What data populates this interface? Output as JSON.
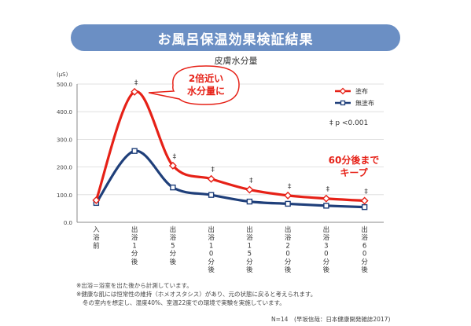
{
  "banner": {
    "title": "お風呂保温効果検証結果"
  },
  "chart_data": {
    "type": "line",
    "title": "皮膚水分量",
    "ylabel": "(μS)",
    "ylim": [
      0,
      500
    ],
    "yticks": [
      "0.0",
      "100.0",
      "200.0",
      "300.0",
      "400.0",
      "500.0"
    ],
    "categories": [
      "入浴前",
      "出浴1分後",
      "出浴5分後",
      "出浴10分後",
      "出浴15分後",
      "出浴20分後",
      "出浴30分後",
      "出浴60分後"
    ],
    "series": [
      {
        "name": "塗布",
        "color": "#e62117",
        "marker": "diamond",
        "values": [
          80,
          472,
          205,
          157,
          118,
          97,
          86,
          78
        ]
      },
      {
        "name": "無塗布",
        "color": "#1f3f7a",
        "marker": "square",
        "values": [
          70,
          258,
          126,
          99,
          75,
          67,
          60,
          55
        ]
      }
    ],
    "significance_marks": [
      "",
      "‡",
      "‡",
      "‡",
      "‡",
      "‡",
      "‡",
      "‡"
    ],
    "significance_legend": "‡ p <0.001",
    "callout": {
      "line1": "2倍近い",
      "line2": "水分量に"
    },
    "annotation": {
      "line1": "60分後まで",
      "line2": "キープ"
    },
    "legend_position": "top-right",
    "grid": true
  },
  "footnotes": [
    "※出浴＝浴室を出た後から計測しています。",
    "※健康な肌には恒常性の維持（ホメオスタシス）があり、元の状態に戻ると考えられます。",
    "冬の室内を想定し、湿度40%、室温22度での環境で実験を実施しています。"
  ],
  "source": "N=14　(早坂信哉：日本健康開発雑誌2017)"
}
